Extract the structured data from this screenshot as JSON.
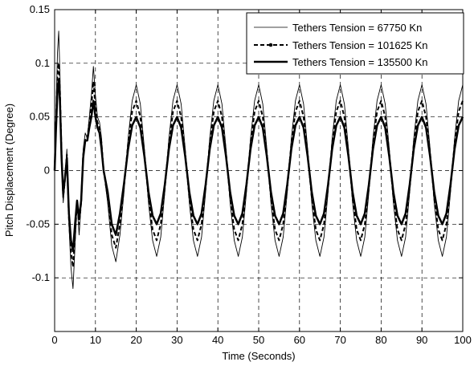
{
  "chart_data": {
    "type": "line",
    "title": "",
    "xlabel": "Time (Seconds)",
    "ylabel": "Pitch Displacement (Degree)",
    "xlim": [
      0,
      100
    ],
    "ylim": [
      -0.15,
      0.15
    ],
    "grid": true,
    "legend_position": "top-right",
    "x_ticks": [
      0,
      10,
      20,
      30,
      40,
      50,
      60,
      70,
      80,
      90,
      100
    ],
    "x_tick_labels": [
      "0",
      "10",
      "20",
      "30",
      "40",
      "50",
      "60",
      "70",
      "80",
      "90",
      "100"
    ],
    "y_ticks": [
      -0.15,
      -0.1,
      -0.05,
      0,
      0.05,
      0.1,
      0.15
    ],
    "y_tick_labels": [
      "",
      "-0.1",
      "-0.05",
      "0",
      "0.05",
      "0.1",
      "0.15"
    ],
    "series": [
      {
        "name": "Tethers Tension = 67750 Kn",
        "style": "thin-solid",
        "color": "#000000",
        "x": [
          0,
          0.3,
          0.7,
          1.0,
          1.3,
          1.7,
          2.1,
          2.5,
          3.0,
          3.5,
          4.0,
          4.5,
          5.0,
          5.5,
          6.0,
          6.5,
          7.0,
          7.5,
          8.0,
          8.5,
          9.0,
          9.5,
          10.0,
          10.5,
          11.0,
          11.5,
          12.0,
          13.0,
          14.0,
          15.0,
          16.0,
          17.0,
          18.0,
          19.0,
          20.0,
          21.0,
          22.0,
          23.0,
          24.0,
          25.0,
          26.0,
          27.0,
          28.0,
          29.0,
          30.0,
          31.0,
          32.0,
          33.0,
          34.0,
          35.0,
          36.0,
          37.0,
          38.0,
          39.0,
          40.0,
          41.0,
          42.0,
          43.0,
          44.0,
          45.0,
          46.0,
          47.0,
          48.0,
          49.0,
          50.0,
          51.0,
          52.0,
          53.0,
          54.0,
          55.0,
          56.0,
          57.0,
          58.0,
          59.0,
          60.0,
          61.0,
          62.0,
          63.0,
          64.0,
          65.0,
          66.0,
          67.0,
          68.0,
          69.0,
          70.0,
          71.0,
          72.0,
          73.0,
          74.0,
          75.0,
          76.0,
          77.0,
          78.0,
          79.0,
          80.0,
          81.0,
          82.0,
          83.0,
          84.0,
          85.0,
          86.0,
          87.0,
          88.0,
          89.0,
          90.0,
          91.0,
          92.0,
          93.0,
          94.0,
          95.0,
          96.0,
          97.0,
          98.0,
          99.0,
          100.0
        ],
        "y": [
          0,
          0.05,
          0.11,
          0.13,
          0.09,
          0.02,
          -0.03,
          -0.01,
          0.02,
          -0.05,
          -0.09,
          -0.11,
          -0.07,
          -0.03,
          -0.06,
          -0.03,
          0.02,
          0.035,
          0.03,
          0.05,
          0.07,
          0.097,
          0.07,
          0.05,
          0.045,
          0.03,
          0.0,
          -0.03,
          -0.07,
          -0.085,
          -0.06,
          -0.02,
          0.03,
          0.065,
          0.08,
          0.062,
          0.02,
          -0.03,
          -0.065,
          -0.08,
          -0.062,
          -0.02,
          0.03,
          0.065,
          0.08,
          0.062,
          0.02,
          -0.03,
          -0.065,
          -0.08,
          -0.062,
          -0.02,
          0.03,
          0.065,
          0.08,
          0.062,
          0.02,
          -0.03,
          -0.065,
          -0.08,
          -0.062,
          -0.02,
          0.03,
          0.065,
          0.08,
          0.062,
          0.02,
          -0.03,
          -0.065,
          -0.08,
          -0.062,
          -0.02,
          0.03,
          0.065,
          0.08,
          0.062,
          0.02,
          -0.03,
          -0.065,
          -0.08,
          -0.062,
          -0.02,
          0.03,
          0.065,
          0.08,
          0.062,
          0.02,
          -0.03,
          -0.065,
          -0.08,
          -0.062,
          -0.02,
          0.03,
          0.065,
          0.08,
          0.062,
          0.02,
          -0.03,
          -0.065,
          -0.08,
          -0.062,
          -0.02,
          0.03,
          0.065,
          0.08,
          0.062,
          0.02,
          -0.03,
          -0.065,
          -0.08,
          -0.062,
          -0.02,
          0.03,
          0.065,
          0.08
        ]
      },
      {
        "name": "Tethers Tension = 101625 Kn",
        "style": "dashed",
        "color": "#000000",
        "x": [
          0,
          0.3,
          0.7,
          1.0,
          1.3,
          1.7,
          2.1,
          2.5,
          3.0,
          3.5,
          4.0,
          4.5,
          5.0,
          5.5,
          6.0,
          6.5,
          7.0,
          7.5,
          8.0,
          8.5,
          9.0,
          9.5,
          10.0,
          10.5,
          11.0,
          11.5,
          12.0,
          13.0,
          14.0,
          15.0,
          16.0,
          17.0,
          18.0,
          19.0,
          20.0,
          21.0,
          22.0,
          23.0,
          24.0,
          25.0,
          26.0,
          27.0,
          28.0,
          29.0,
          30.0,
          31.0,
          32.0,
          33.0,
          34.0,
          35.0,
          36.0,
          37.0,
          38.0,
          39.0,
          40.0,
          41.0,
          42.0,
          43.0,
          44.0,
          45.0,
          46.0,
          47.0,
          48.0,
          49.0,
          50.0,
          51.0,
          52.0,
          53.0,
          54.0,
          55.0,
          56.0,
          57.0,
          58.0,
          59.0,
          60.0,
          61.0,
          62.0,
          63.0,
          64.0,
          65.0,
          66.0,
          67.0,
          68.0,
          69.0,
          70.0,
          71.0,
          72.0,
          73.0,
          74.0,
          75.0,
          76.0,
          77.0,
          78.0,
          79.0,
          80.0,
          81.0,
          82.0,
          83.0,
          84.0,
          85.0,
          86.0,
          87.0,
          88.0,
          89.0,
          90.0,
          91.0,
          92.0,
          93.0,
          94.0,
          95.0,
          96.0,
          97.0,
          98.0,
          99.0,
          100.0
        ],
        "y": [
          0,
          0.04,
          0.09,
          0.1,
          0.075,
          0.015,
          -0.025,
          -0.01,
          0.015,
          -0.045,
          -0.075,
          -0.09,
          -0.06,
          -0.03,
          -0.05,
          -0.03,
          0.015,
          0.03,
          0.03,
          0.045,
          0.06,
          0.083,
          0.06,
          0.045,
          0.04,
          0.025,
          0.0,
          -0.025,
          -0.06,
          -0.072,
          -0.05,
          -0.015,
          0.025,
          0.055,
          0.065,
          0.05,
          0.016,
          -0.025,
          -0.055,
          -0.065,
          -0.05,
          -0.016,
          0.025,
          0.055,
          0.065,
          0.05,
          0.016,
          -0.025,
          -0.055,
          -0.065,
          -0.05,
          -0.016,
          0.025,
          0.055,
          0.065,
          0.05,
          0.016,
          -0.025,
          -0.055,
          -0.065,
          -0.05,
          -0.016,
          0.025,
          0.055,
          0.065,
          0.05,
          0.016,
          -0.025,
          -0.055,
          -0.065,
          -0.05,
          -0.016,
          0.025,
          0.055,
          0.065,
          0.05,
          0.016,
          -0.025,
          -0.055,
          -0.065,
          -0.05,
          -0.016,
          0.025,
          0.055,
          0.065,
          0.05,
          0.016,
          -0.025,
          -0.055,
          -0.065,
          -0.05,
          -0.016,
          0.025,
          0.055,
          0.065,
          0.05,
          0.016,
          -0.025,
          -0.055,
          -0.065,
          -0.05,
          -0.016,
          0.025,
          0.055,
          0.065,
          0.05,
          0.016,
          -0.025,
          -0.055,
          -0.065,
          -0.05,
          -0.016,
          0.025,
          0.055,
          0.065
        ]
      },
      {
        "name": "Tethers Tension = 135500 Kn",
        "style": "thick-solid",
        "color": "#000000",
        "x": [
          0,
          0.3,
          0.7,
          1.0,
          1.3,
          1.7,
          2.1,
          2.5,
          3.0,
          3.5,
          4.0,
          4.5,
          5.0,
          5.5,
          6.0,
          6.5,
          7.0,
          7.5,
          8.0,
          8.5,
          9.0,
          9.5,
          10.0,
          10.5,
          11.0,
          11.5,
          12.0,
          13.0,
          14.0,
          15.0,
          16.0,
          17.0,
          18.0,
          19.0,
          20.0,
          21.0,
          22.0,
          23.0,
          24.0,
          25.0,
          26.0,
          27.0,
          28.0,
          29.0,
          30.0,
          31.0,
          32.0,
          33.0,
          34.0,
          35.0,
          36.0,
          37.0,
          38.0,
          39.0,
          40.0,
          41.0,
          42.0,
          43.0,
          44.0,
          45.0,
          46.0,
          47.0,
          48.0,
          49.0,
          50.0,
          51.0,
          52.0,
          53.0,
          54.0,
          55.0,
          56.0,
          57.0,
          58.0,
          59.0,
          60.0,
          61.0,
          62.0,
          63.0,
          64.0,
          65.0,
          66.0,
          67.0,
          68.0,
          69.0,
          70.0,
          71.0,
          72.0,
          73.0,
          74.0,
          75.0,
          76.0,
          77.0,
          78.0,
          79.0,
          80.0,
          81.0,
          82.0,
          83.0,
          84.0,
          85.0,
          86.0,
          87.0,
          88.0,
          89.0,
          90.0,
          91.0,
          92.0,
          93.0,
          94.0,
          95.0,
          96.0,
          97.0,
          98.0,
          99.0,
          100.0
        ],
        "y": [
          0,
          0.035,
          0.075,
          0.085,
          0.065,
          0.012,
          -0.022,
          -0.008,
          0.012,
          -0.04,
          -0.065,
          -0.075,
          -0.05,
          -0.028,
          -0.045,
          -0.028,
          0.012,
          0.028,
          0.028,
          0.04,
          0.05,
          0.065,
          0.05,
          0.04,
          0.035,
          0.02,
          0.0,
          -0.02,
          -0.05,
          -0.06,
          -0.04,
          -0.012,
          0.02,
          0.042,
          0.05,
          0.04,
          0.013,
          -0.02,
          -0.042,
          -0.05,
          -0.04,
          -0.013,
          0.02,
          0.042,
          0.05,
          0.04,
          0.013,
          -0.02,
          -0.042,
          -0.05,
          -0.04,
          -0.013,
          0.02,
          0.042,
          0.05,
          0.04,
          0.013,
          -0.02,
          -0.042,
          -0.05,
          -0.04,
          -0.013,
          0.02,
          0.042,
          0.05,
          0.04,
          0.013,
          -0.02,
          -0.042,
          -0.05,
          -0.04,
          -0.013,
          0.02,
          0.042,
          0.05,
          0.04,
          0.013,
          -0.02,
          -0.042,
          -0.05,
          -0.04,
          -0.013,
          0.02,
          0.042,
          0.05,
          0.04,
          0.013,
          -0.02,
          -0.042,
          -0.05,
          -0.04,
          -0.013,
          0.02,
          0.042,
          0.05,
          0.04,
          0.013,
          -0.02,
          -0.042,
          -0.05,
          -0.04,
          -0.013,
          0.02,
          0.042,
          0.05,
          0.04,
          0.013,
          -0.02,
          -0.042,
          -0.05,
          -0.04,
          -0.013,
          0.02,
          0.042,
          0.05
        ]
      }
    ]
  }
}
